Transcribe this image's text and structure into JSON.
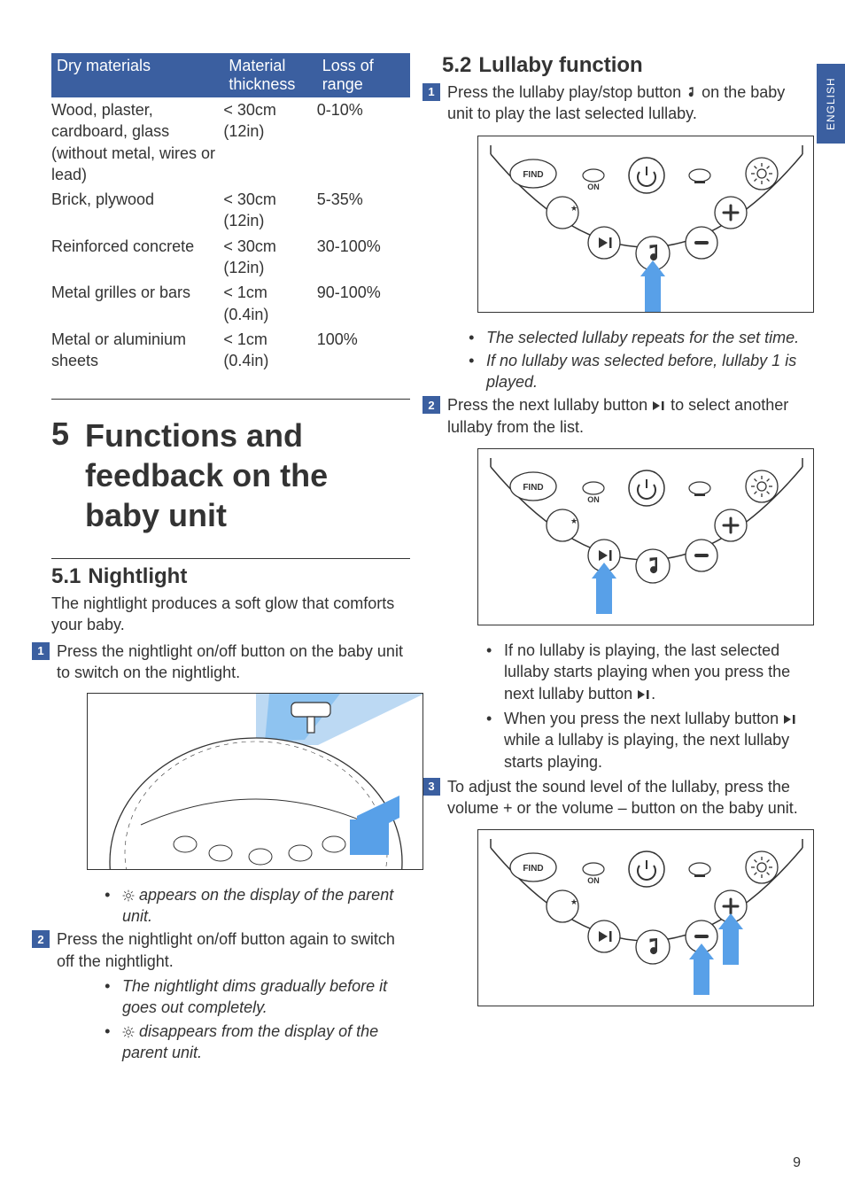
{
  "colors": {
    "brand_blue": "#3b5fa0",
    "arrow_blue": "#58a0e8",
    "glow_blue": "#bcd9f3",
    "text": "#333333",
    "background": "#ffffff"
  },
  "lang_tab": "ENGLISH",
  "page_number": "9",
  "materials_table": {
    "headers": [
      "Dry materials",
      "Material thickness",
      "Loss of range"
    ],
    "rows": [
      {
        "material": "Wood, plaster, cardboard, glass (without metal, wires or lead)",
        "thickness": "< 30cm (12in)",
        "loss": "0-10%"
      },
      {
        "material": "Brick, plywood",
        "thickness": "< 30cm (12in)",
        "loss": "5-35%"
      },
      {
        "material": "Reinforced concrete",
        "thickness": "< 30cm (12in)",
        "loss": "30-100%"
      },
      {
        "material": "Metal grilles or bars",
        "thickness": "< 1cm (0.4in)",
        "loss": "90-100%"
      },
      {
        "material": "Metal or aluminium sheets",
        "thickness": "< 1cm (0.4in)",
        "loss": "100%"
      }
    ]
  },
  "chapter": {
    "number": "5",
    "title": "Functions and feedback on the baby unit"
  },
  "section_5_1": {
    "number": "5.1",
    "title": "Nightlight",
    "intro": "The nightlight produces a soft glow that comforts your baby.",
    "step1": "Press the nightlight on/off button on the baby unit to switch on the nightlight.",
    "after_fig_bullet": " appears on the display of the parent unit.",
    "step2": "Press the nightlight on/off button again to switch off the nightlight.",
    "step2_bullets": [
      "The nightlight dims gradually before it goes out completely.",
      " disappears from the display of the parent unit."
    ]
  },
  "section_5_2": {
    "number": "5.2",
    "title": "Lullaby function",
    "step1_a": "Press the lullaby play/stop button ",
    "step1_b": " on the baby unit to play the last selected lullaby.",
    "after1_bullets": [
      "The selected lullaby repeats for the set time.",
      "If no lullaby was selected before, lullaby 1 is played."
    ],
    "step2_a": "Press the next lullaby button ",
    "step2_b": " to select another lullaby from the list.",
    "after2_b1_a": "If no lullaby is playing, the last selected lullaby starts playing when you press the next lullaby button ",
    "after2_b1_b": ".",
    "after2_b2_a": "When you press the next lullaby button ",
    "after2_b2_b": " while a lullaby is playing, the next lullaby starts playing.",
    "step3": "To adjust the sound level of the lullaby, press the volume + or the volume – button on the baby unit."
  },
  "panel": {
    "find_label": "FIND",
    "on_label": "ON",
    "button_stroke": "#333333",
    "icon_color": "#333333"
  }
}
